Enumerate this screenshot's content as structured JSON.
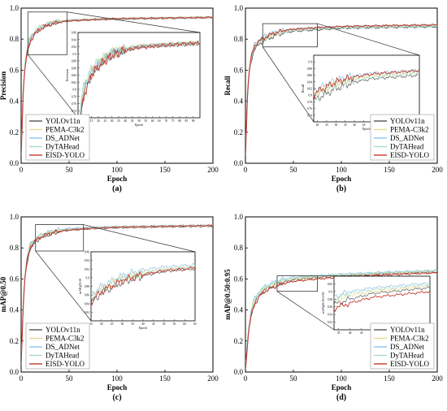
{
  "colors": {
    "YOLOv11n": "#555555",
    "PEMA-C3k2": "#e8d98a",
    "DS_ADNet": "#8fc3ea",
    "DyTAHead": "#a7dcc6",
    "EISD-YOLO": "#c0392b"
  },
  "chart_data": [
    {
      "type": "line",
      "panel_label": "(a)",
      "xlabel": "Epoch",
      "ylabel": "Precision",
      "xlim": [
        0,
        200
      ],
      "ylim": [
        0,
        1.0
      ],
      "xticks": [
        0,
        50,
        100,
        150,
        200
      ],
      "yticks": [
        0.0,
        0.2,
        0.4,
        0.6,
        0.8,
        1.0
      ],
      "legend": [
        "YOLOv11n",
        "PEMA-C3k2",
        "DS_ADNet",
        "DyTAHead",
        "EISD-YOLO"
      ],
      "legend_position": "lower-left",
      "zoom_region": {
        "x": [
          7,
          48
        ],
        "y": [
          0.7,
          0.975
        ]
      },
      "inset": {
        "xlabel": "Epoch",
        "ylabel": "Precision",
        "xlim": [
          5,
          95
        ],
        "ylim": [
          0.72,
          0.96
        ],
        "xticks": [
          10,
          15,
          20,
          25,
          30,
          35,
          40,
          45,
          50,
          55,
          60,
          65,
          70,
          75,
          80,
          85,
          90
        ],
        "yticks": [
          0.74,
          0.76,
          0.78,
          0.8,
          0.82,
          0.84,
          0.86,
          0.88,
          0.9,
          0.92,
          0.94,
          0.96
        ]
      },
      "series": [
        {
          "name": "YOLOv11n",
          "x": [
            0,
            2,
            4,
            6,
            8,
            10,
            15,
            20,
            30,
            40,
            50,
            75,
            100,
            150,
            200
          ],
          "y": [
            0.05,
            0.45,
            0.62,
            0.7,
            0.76,
            0.8,
            0.84,
            0.87,
            0.9,
            0.91,
            0.92,
            0.925,
            0.93,
            0.935,
            0.94
          ]
        },
        {
          "name": "PEMA-C3k2",
          "x": [
            0,
            2,
            4,
            6,
            8,
            10,
            15,
            20,
            30,
            40,
            50,
            75,
            100,
            150,
            200
          ],
          "y": [
            0.06,
            0.47,
            0.63,
            0.71,
            0.77,
            0.81,
            0.85,
            0.875,
            0.905,
            0.915,
            0.922,
            0.928,
            0.932,
            0.937,
            0.94
          ]
        },
        {
          "name": "DS_ADNet",
          "x": [
            0,
            2,
            4,
            6,
            8,
            10,
            15,
            20,
            30,
            40,
            50,
            75,
            100,
            150,
            200
          ],
          "y": [
            0.06,
            0.46,
            0.64,
            0.72,
            0.78,
            0.81,
            0.85,
            0.87,
            0.9,
            0.912,
            0.92,
            0.927,
            0.93,
            0.936,
            0.94
          ]
        },
        {
          "name": "DyTAHead",
          "x": [
            0,
            2,
            4,
            6,
            8,
            10,
            15,
            20,
            30,
            40,
            50,
            75,
            100,
            150,
            200
          ],
          "y": [
            0.07,
            0.48,
            0.65,
            0.73,
            0.79,
            0.82,
            0.86,
            0.88,
            0.905,
            0.915,
            0.922,
            0.928,
            0.933,
            0.937,
            0.94
          ]
        },
        {
          "name": "EISD-YOLO",
          "x": [
            0,
            2,
            4,
            6,
            8,
            10,
            15,
            20,
            30,
            40,
            50,
            75,
            100,
            150,
            200
          ],
          "y": [
            0.05,
            0.44,
            0.61,
            0.7,
            0.75,
            0.79,
            0.84,
            0.865,
            0.895,
            0.91,
            0.918,
            0.926,
            0.932,
            0.936,
            0.94
          ]
        }
      ]
    },
    {
      "type": "line",
      "panel_label": "(b)",
      "xlabel": "Epoch",
      "ylabel": "Recall",
      "xlim": [
        0,
        200
      ],
      "ylim": [
        0,
        1.0
      ],
      "xticks": [
        0,
        50,
        100,
        150,
        200
      ],
      "yticks": [
        0.0,
        0.2,
        0.4,
        0.6,
        0.8,
        1.0
      ],
      "legend": [
        "YOLOv11n",
        "PEMA-C3k2",
        "DS_ADNet",
        "DyTAHead",
        "EISD-YOLO"
      ],
      "legend_position": "lower-right",
      "zoom_region": {
        "x": [
          18,
          75
        ],
        "y": [
          0.75,
          0.9
        ]
      },
      "inset": {
        "xlabel": "Epoch",
        "ylabel": "Recall",
        "xlim": [
          18,
          75
        ],
        "ylim": [
          0.72,
          0.92
        ],
        "xticks": [
          20,
          25,
          30,
          35,
          40,
          45,
          50,
          55,
          60,
          65,
          70
        ],
        "yticks": [
          0.74,
          0.76,
          0.78,
          0.8,
          0.82,
          0.84,
          0.86,
          0.88,
          0.9
        ]
      },
      "series": [
        {
          "name": "YOLOv11n",
          "x": [
            0,
            2,
            4,
            6,
            8,
            10,
            15,
            20,
            30,
            40,
            50,
            75,
            100,
            150,
            200
          ],
          "y": [
            0.05,
            0.42,
            0.58,
            0.66,
            0.71,
            0.74,
            0.77,
            0.79,
            0.82,
            0.84,
            0.85,
            0.86,
            0.87,
            0.875,
            0.88
          ]
        },
        {
          "name": "PEMA-C3k2",
          "x": [
            0,
            2,
            4,
            6,
            8,
            10,
            15,
            20,
            30,
            40,
            50,
            75,
            100,
            150,
            200
          ],
          "y": [
            0.06,
            0.44,
            0.6,
            0.68,
            0.73,
            0.76,
            0.79,
            0.81,
            0.835,
            0.85,
            0.86,
            0.87,
            0.878,
            0.884,
            0.89
          ]
        },
        {
          "name": "DS_ADNet",
          "x": [
            0,
            2,
            4,
            6,
            8,
            10,
            15,
            20,
            30,
            40,
            50,
            75,
            100,
            150,
            200
          ],
          "y": [
            0.06,
            0.45,
            0.61,
            0.69,
            0.74,
            0.77,
            0.8,
            0.82,
            0.845,
            0.858,
            0.866,
            0.874,
            0.88,
            0.886,
            0.89
          ]
        },
        {
          "name": "DyTAHead",
          "x": [
            0,
            2,
            4,
            6,
            8,
            10,
            15,
            20,
            30,
            40,
            50,
            75,
            100,
            150,
            200
          ],
          "y": [
            0.06,
            0.43,
            0.59,
            0.67,
            0.72,
            0.75,
            0.78,
            0.8,
            0.83,
            0.845,
            0.855,
            0.865,
            0.872,
            0.878,
            0.882
          ]
        },
        {
          "name": "EISD-YOLO",
          "x": [
            0,
            2,
            4,
            6,
            8,
            10,
            15,
            20,
            30,
            40,
            50,
            75,
            100,
            150,
            200
          ],
          "y": [
            0.05,
            0.43,
            0.6,
            0.68,
            0.73,
            0.76,
            0.79,
            0.81,
            0.84,
            0.855,
            0.864,
            0.874,
            0.882,
            0.888,
            0.892
          ]
        }
      ]
    },
    {
      "type": "line",
      "panel_label": "(c)",
      "xlabel": "Epoch",
      "ylabel": "mAP@0.50",
      "xlim": [
        0,
        200
      ],
      "ylim": [
        0,
        1.0
      ],
      "xticks": [
        0,
        50,
        100,
        150,
        200
      ],
      "yticks": [
        0.0,
        0.2,
        0.4,
        0.6,
        0.8,
        1.0
      ],
      "legend": [
        "YOLOv11n",
        "PEMA-C3k2",
        "DS_ADNet",
        "DyTAHead",
        "EISD-YOLO"
      ],
      "legend_position": "lower-left",
      "zoom_region": {
        "x": [
          15,
          65
        ],
        "y": [
          0.78,
          0.95
        ]
      },
      "inset": {
        "xlabel": "Epoch",
        "ylabel": "mAP@0.50",
        "xlim": [
          15,
          65
        ],
        "ylim": [
          0.8,
          0.96
        ],
        "xticks": [
          15,
          20,
          25,
          30,
          35,
          40,
          45,
          50,
          55,
          60,
          65
        ],
        "yticks": [
          0.82,
          0.84,
          0.86,
          0.88,
          0.9,
          0.92,
          0.94,
          0.96
        ]
      },
      "series": [
        {
          "name": "YOLOv11n",
          "x": [
            0,
            2,
            4,
            6,
            8,
            10,
            15,
            20,
            30,
            40,
            50,
            75,
            100,
            150,
            200
          ],
          "y": [
            0.05,
            0.4,
            0.6,
            0.7,
            0.76,
            0.8,
            0.84,
            0.865,
            0.89,
            0.905,
            0.915,
            0.925,
            0.93,
            0.936,
            0.94
          ]
        },
        {
          "name": "PEMA-C3k2",
          "x": [
            0,
            2,
            4,
            6,
            8,
            10,
            15,
            20,
            30,
            40,
            50,
            75,
            100,
            150,
            200
          ],
          "y": [
            0.06,
            0.42,
            0.62,
            0.72,
            0.78,
            0.82,
            0.855,
            0.875,
            0.9,
            0.912,
            0.92,
            0.93,
            0.935,
            0.94,
            0.945
          ]
        },
        {
          "name": "DS_ADNet",
          "x": [
            0,
            2,
            4,
            6,
            8,
            10,
            15,
            20,
            30,
            40,
            50,
            75,
            100,
            150,
            200
          ],
          "y": [
            0.06,
            0.43,
            0.63,
            0.73,
            0.79,
            0.83,
            0.86,
            0.88,
            0.905,
            0.918,
            0.925,
            0.933,
            0.938,
            0.943,
            0.946
          ]
        },
        {
          "name": "DyTAHead",
          "x": [
            0,
            2,
            4,
            6,
            8,
            10,
            15,
            20,
            30,
            40,
            50,
            75,
            100,
            150,
            200
          ],
          "y": [
            0.06,
            0.42,
            0.62,
            0.72,
            0.78,
            0.82,
            0.852,
            0.873,
            0.898,
            0.91,
            0.918,
            0.928,
            0.933,
            0.939,
            0.943
          ]
        },
        {
          "name": "EISD-YOLO",
          "x": [
            0,
            2,
            4,
            6,
            8,
            10,
            15,
            20,
            30,
            40,
            50,
            75,
            100,
            150,
            200
          ],
          "y": [
            0.05,
            0.41,
            0.61,
            0.71,
            0.77,
            0.81,
            0.845,
            0.868,
            0.893,
            0.907,
            0.916,
            0.927,
            0.933,
            0.939,
            0.944
          ]
        }
      ]
    },
    {
      "type": "line",
      "panel_label": "(d)",
      "xlabel": "Epoch",
      "ylabel": "mAP@0.50:0.95",
      "xlim": [
        0,
        200
      ],
      "ylim": [
        0,
        1.0
      ],
      "xticks": [
        0,
        50,
        100,
        150,
        200
      ],
      "yticks": [
        0.0,
        0.2,
        0.4,
        0.6,
        0.8,
        1.0
      ],
      "legend": [
        "YOLOv11n",
        "PEMA-C3k2",
        "DS_ADNet",
        "DyTAHead",
        "EISD-YOLO"
      ],
      "legend_position": "lower-right",
      "zoom_region": {
        "x": [
          33,
          75
        ],
        "y": [
          0.52,
          0.62
        ]
      },
      "inset": {
        "xlabel": "Epoch",
        "ylabel": "mAP@0.50:0.95",
        "xlim": [
          33,
          75
        ],
        "ylim": [
          0.5,
          0.64
        ],
        "xticks": [
          35,
          40,
          45,
          50,
          55,
          60,
          65,
          70,
          75
        ],
        "yticks": [
          0.52,
          0.54,
          0.56,
          0.58,
          0.6,
          0.62
        ]
      },
      "series": [
        {
          "name": "YOLOv11n",
          "x": [
            0,
            2,
            4,
            6,
            8,
            10,
            15,
            20,
            30,
            40,
            50,
            75,
            100,
            150,
            200
          ],
          "y": [
            0.02,
            0.18,
            0.3,
            0.37,
            0.42,
            0.45,
            0.5,
            0.53,
            0.56,
            0.58,
            0.595,
            0.61,
            0.62,
            0.635,
            0.645
          ]
        },
        {
          "name": "PEMA-C3k2",
          "x": [
            0,
            2,
            4,
            6,
            8,
            10,
            15,
            20,
            30,
            40,
            50,
            75,
            100,
            150,
            200
          ],
          "y": [
            0.02,
            0.19,
            0.31,
            0.38,
            0.43,
            0.46,
            0.51,
            0.54,
            0.57,
            0.59,
            0.6,
            0.615,
            0.625,
            0.64,
            0.65
          ]
        },
        {
          "name": "DS_ADNet",
          "x": [
            0,
            2,
            4,
            6,
            8,
            10,
            15,
            20,
            30,
            40,
            50,
            75,
            100,
            150,
            200
          ],
          "y": [
            0.02,
            0.2,
            0.33,
            0.4,
            0.45,
            0.48,
            0.525,
            0.55,
            0.58,
            0.6,
            0.61,
            0.622,
            0.632,
            0.645,
            0.655
          ]
        },
        {
          "name": "DyTAHead",
          "x": [
            0,
            2,
            4,
            6,
            8,
            10,
            15,
            20,
            30,
            40,
            50,
            75,
            100,
            150,
            200
          ],
          "y": [
            0.02,
            0.19,
            0.32,
            0.39,
            0.44,
            0.47,
            0.515,
            0.545,
            0.575,
            0.595,
            0.605,
            0.618,
            0.628,
            0.642,
            0.652
          ]
        },
        {
          "name": "EISD-YOLO",
          "x": [
            0,
            2,
            4,
            6,
            8,
            10,
            15,
            20,
            30,
            40,
            50,
            75,
            100,
            150,
            200
          ],
          "y": [
            0.02,
            0.17,
            0.29,
            0.36,
            0.41,
            0.44,
            0.49,
            0.52,
            0.55,
            0.57,
            0.585,
            0.6,
            0.612,
            0.628,
            0.64
          ]
        }
      ]
    }
  ]
}
